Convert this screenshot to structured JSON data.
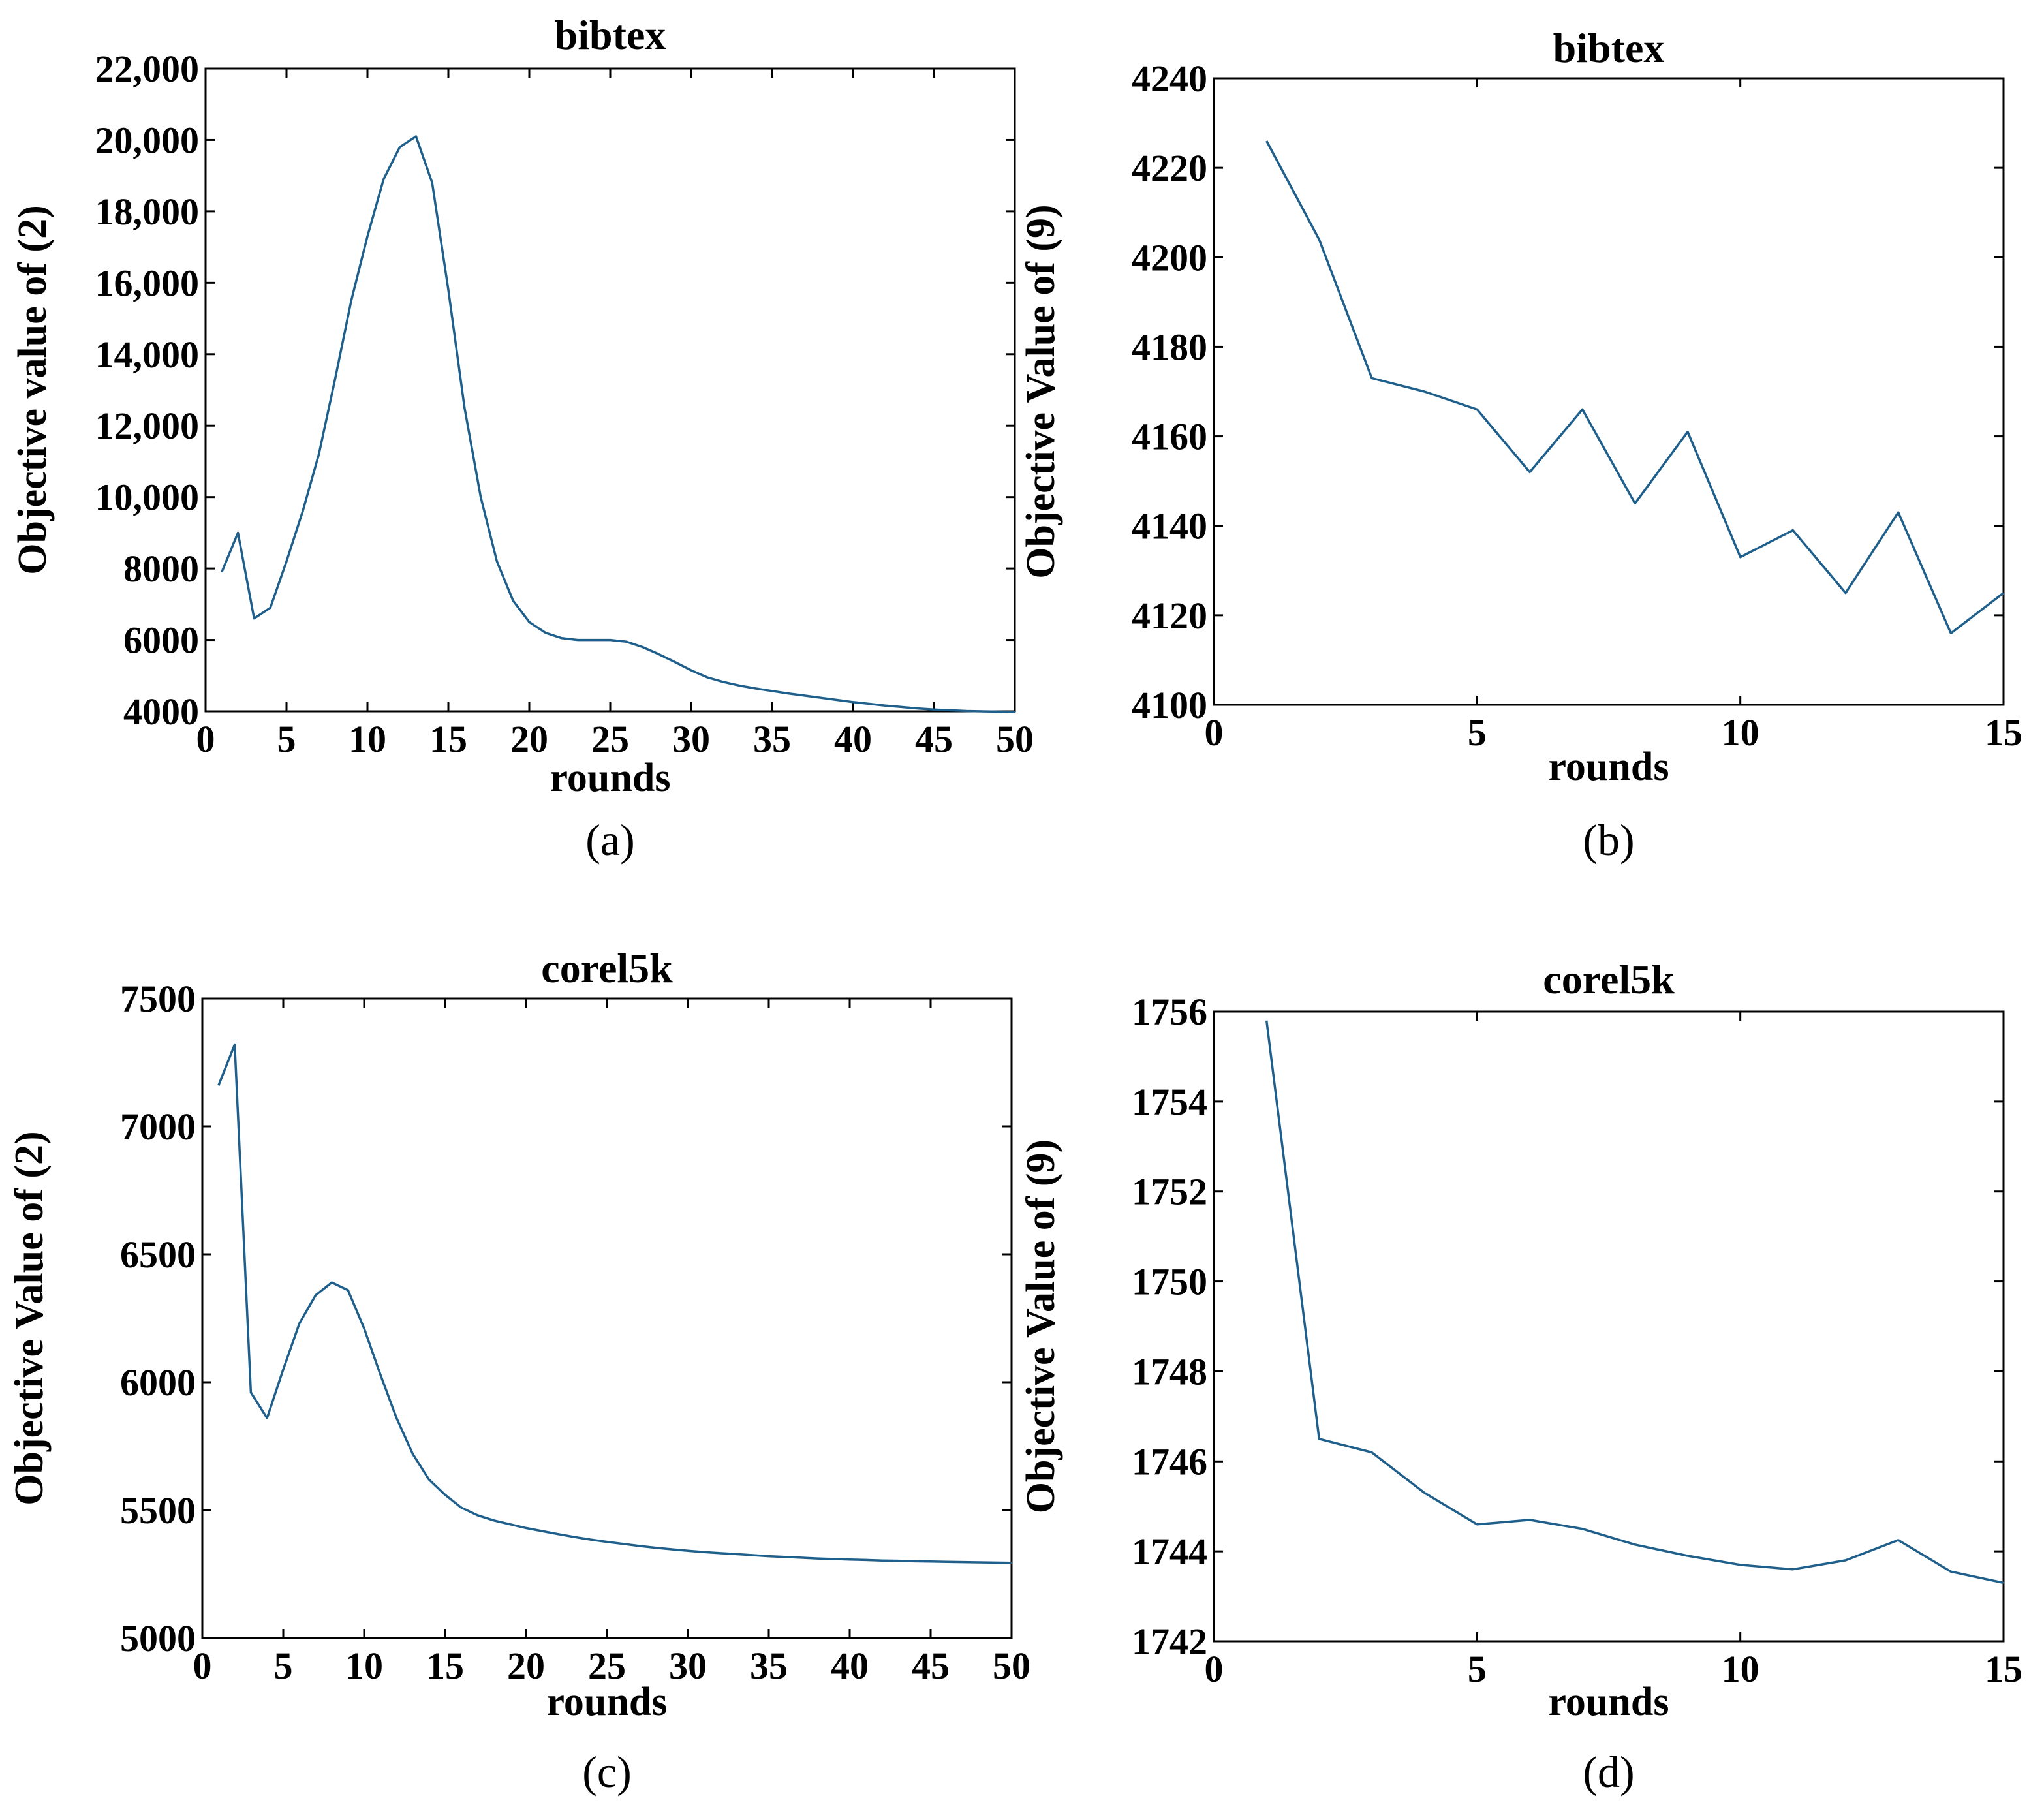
{
  "figure": {
    "line_color": "#1f5f8b"
  },
  "chart_data": [
    {
      "id": "a",
      "type": "line",
      "caption": "(a)",
      "title": "bibtex",
      "xlabel": "rounds",
      "ylabel": "Objective value of (2)",
      "xlim": [
        0,
        50
      ],
      "ylim": [
        4000,
        22000
      ],
      "xticks": [
        0,
        5,
        10,
        15,
        20,
        25,
        30,
        35,
        40,
        45,
        50
      ],
      "xtick_labels": [
        "0",
        "5",
        "10",
        "15",
        "20",
        "25",
        "30",
        "35",
        "40",
        "45",
        "50"
      ],
      "yticks": [
        4000,
        6000,
        8000,
        10000,
        12000,
        14000,
        16000,
        18000,
        20000,
        22000
      ],
      "ytick_labels": [
        "4000",
        "6000",
        "8000",
        "10,000",
        "12,000",
        "14,000",
        "16,000",
        "18,000",
        "20,000",
        "22,000"
      ],
      "grid": false,
      "series": [
        {
          "name": "objective",
          "x": [
            1,
            2,
            3,
            4,
            5,
            6,
            7,
            8,
            9,
            10,
            11,
            12,
            13,
            14,
            15,
            16,
            17,
            18,
            19,
            20,
            21,
            22,
            23,
            24,
            25,
            26,
            27,
            28,
            29,
            30,
            31,
            32,
            33,
            34,
            35,
            36,
            37,
            38,
            39,
            40,
            41,
            42,
            43,
            44,
            45,
            46,
            47,
            48,
            49,
            50
          ],
          "values": [
            7900,
            9000,
            6600,
            6900,
            8200,
            9600,
            11200,
            13300,
            15500,
            17300,
            18900,
            19800,
            20100,
            18800,
            15800,
            12500,
            10000,
            8200,
            7100,
            6500,
            6200,
            6050,
            6000,
            6000,
            6000,
            5950,
            5800,
            5600,
            5380,
            5150,
            4950,
            4820,
            4720,
            4640,
            4570,
            4500,
            4440,
            4380,
            4320,
            4260,
            4210,
            4160,
            4120,
            4080,
            4050,
            4030,
            4010,
            4000,
            3990,
            3980
          ]
        }
      ]
    },
    {
      "id": "b",
      "type": "line",
      "caption": "(b)",
      "title": "bibtex",
      "xlabel": "rounds",
      "ylabel": "Objective Value of (9)",
      "xlim": [
        0,
        15
      ],
      "ylim": [
        4100,
        4240
      ],
      "xticks": [
        0,
        5,
        10,
        15
      ],
      "xtick_labels": [
        "0",
        "5",
        "10",
        "15"
      ],
      "yticks": [
        4100,
        4120,
        4140,
        4160,
        4180,
        4200,
        4220,
        4240
      ],
      "ytick_labels": [
        "4100",
        "4120",
        "4140",
        "4160",
        "4180",
        "4200",
        "4220",
        "4240"
      ],
      "grid": false,
      "series": [
        {
          "name": "objective",
          "x": [
            1,
            2,
            3,
            4,
            5,
            6,
            7,
            8,
            9,
            10,
            11,
            12,
            13,
            14,
            15
          ],
          "values": [
            4226,
            4204,
            4173,
            4170,
            4166,
            4152,
            4166,
            4145,
            4161,
            4133,
            4139,
            4125,
            4143,
            4116,
            4125
          ]
        }
      ]
    },
    {
      "id": "c",
      "type": "line",
      "caption": "(c)",
      "title": "corel5k",
      "xlabel": "rounds",
      "ylabel": "Objective Value of (2)",
      "xlim": [
        0,
        50
      ],
      "ylim": [
        5000,
        7500
      ],
      "xticks": [
        0,
        5,
        10,
        15,
        20,
        25,
        30,
        35,
        40,
        45,
        50
      ],
      "xtick_labels": [
        "0",
        "5",
        "10",
        "15",
        "20",
        "25",
        "30",
        "35",
        "40",
        "45",
        "50"
      ],
      "yticks": [
        5000,
        5500,
        6000,
        6500,
        7000,
        7500
      ],
      "ytick_labels": [
        "5000",
        "5500",
        "6000",
        "6500",
        "7000",
        "7500"
      ],
      "grid": false,
      "series": [
        {
          "name": "objective",
          "x": [
            1,
            2,
            3,
            4,
            5,
            6,
            7,
            8,
            9,
            10,
            11,
            12,
            13,
            14,
            15,
            16,
            17,
            18,
            19,
            20,
            21,
            22,
            23,
            24,
            25,
            26,
            27,
            28,
            29,
            30,
            31,
            32,
            33,
            34,
            35,
            36,
            37,
            38,
            39,
            40,
            41,
            42,
            43,
            44,
            45,
            46,
            47,
            48,
            49,
            50
          ],
          "values": [
            7160,
            7320,
            5960,
            5860,
            6050,
            6230,
            6340,
            6390,
            6360,
            6210,
            6030,
            5860,
            5720,
            5620,
            5560,
            5510,
            5480,
            5460,
            5445,
            5430,
            5418,
            5406,
            5395,
            5385,
            5376,
            5368,
            5360,
            5353,
            5347,
            5341,
            5336,
            5332,
            5328,
            5324,
            5320,
            5317,
            5314,
            5311,
            5309,
            5307,
            5305,
            5303,
            5302,
            5300,
            5299,
            5298,
            5297,
            5296,
            5295,
            5294
          ]
        }
      ]
    },
    {
      "id": "d",
      "type": "line",
      "caption": "(d)",
      "title": "corel5k",
      "xlabel": "rounds",
      "ylabel": "Objective Value of (9)",
      "xlim": [
        0,
        15
      ],
      "ylim": [
        1742,
        1756
      ],
      "xticks": [
        0,
        5,
        10,
        15
      ],
      "xtick_labels": [
        "0",
        "5",
        "10",
        "15"
      ],
      "yticks": [
        1742,
        1744,
        1746,
        1748,
        1750,
        1752,
        1754,
        1756
      ],
      "ytick_labels": [
        "1742",
        "1744",
        "1746",
        "1748",
        "1750",
        "1752",
        "1754",
        "1756"
      ],
      "grid": false,
      "series": [
        {
          "name": "objective",
          "x": [
            1,
            2,
            3,
            4,
            5,
            6,
            7,
            8,
            9,
            10,
            11,
            12,
            13,
            14,
            15
          ],
          "values": [
            1755.8,
            1746.5,
            1746.2,
            1745.3,
            1744.6,
            1744.7,
            1744.5,
            1744.15,
            1743.9,
            1743.7,
            1743.6,
            1743.8,
            1744.25,
            1743.55,
            1743.3
          ]
        }
      ]
    }
  ]
}
